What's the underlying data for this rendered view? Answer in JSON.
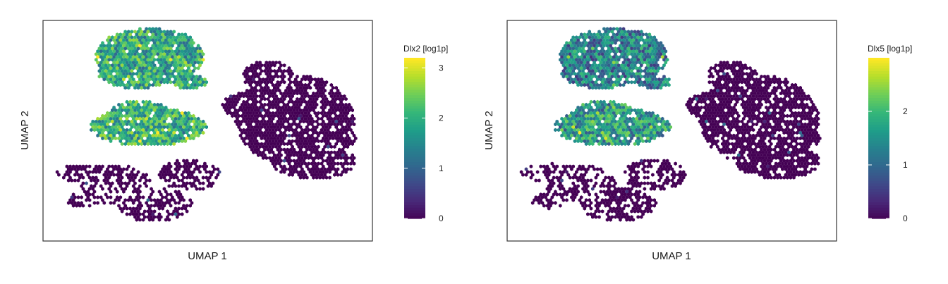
{
  "chart_data": [
    {
      "type": "scatter",
      "subtype": "hexbin embedding colored by expression",
      "xlabel": "UMAP 1",
      "ylabel": "UMAP 2",
      "legend": {
        "title": "Dlx2 [log1p]",
        "placement": "right",
        "colormap": "viridis",
        "range": [
          0,
          3.2
        ],
        "ticks": [
          0,
          1,
          2,
          3
        ],
        "tick_labels": [
          "0",
          "1",
          "2",
          "3"
        ]
      },
      "regions": [
        {
          "region": "upper-left lobe",
          "mean_value": 1.9
        },
        {
          "region": "middle-left lobe",
          "mean_value": 2.0
        },
        {
          "region": "lower-left cluster",
          "mean_value": 0.02
        },
        {
          "region": "right cluster",
          "mean_value": 0.03
        }
      ]
    },
    {
      "type": "scatter",
      "subtype": "hexbin embedding colored by expression",
      "xlabel": "UMAP 1",
      "ylabel": "UMAP 2",
      "legend": {
        "title": "Dlx5 [log1p]",
        "placement": "right",
        "colormap": "viridis",
        "range": [
          0,
          3.0
        ],
        "ticks": [
          0,
          1,
          2
        ],
        "tick_labels": [
          "0",
          "1",
          "2"
        ]
      },
      "regions": [
        {
          "region": "upper-left lobe",
          "mean_value": 1.3
        },
        {
          "region": "middle-left lobe",
          "mean_value": 1.6
        },
        {
          "region": "lower-left cluster",
          "mean_value": 0.02
        },
        {
          "region": "right cluster",
          "mean_value": 0.03
        }
      ]
    }
  ]
}
